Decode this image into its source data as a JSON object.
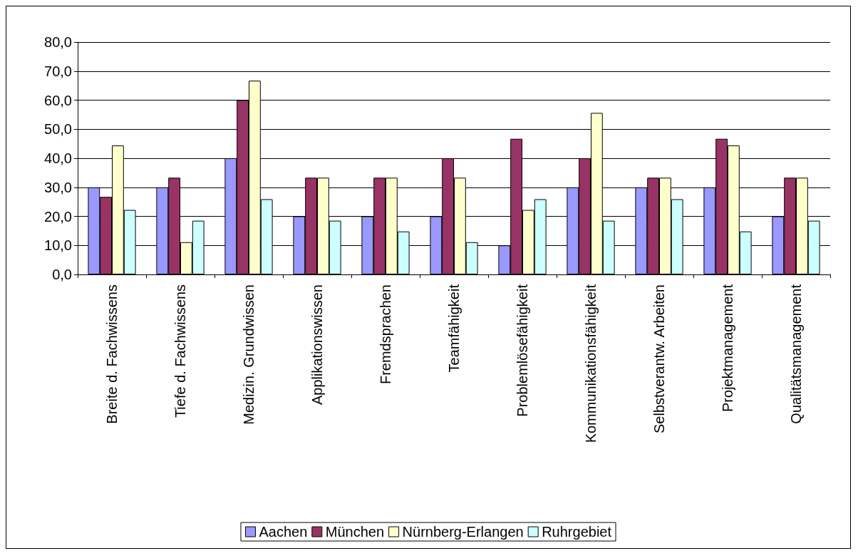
{
  "chart_data": {
    "type": "bar",
    "categories": [
      "Breite d. Fachwissens",
      "Tiefe d. Fachwissens",
      "Medizin. Grundwissen",
      "Applikationswissen",
      "Fremdsprachen",
      "Teamfähigkeit",
      "Problemlösefähigkeit",
      "Kommunikationsfähigkeit",
      "Selbstverantw. Arbeiten",
      "Projektmanagement",
      "Qualitätsmanagement"
    ],
    "series": [
      {
        "name": "Aachen",
        "color": "#9999ff",
        "values": [
          30,
          30,
          40,
          20,
          20,
          20,
          10,
          30,
          30,
          30,
          20
        ]
      },
      {
        "name": "München",
        "color": "#993366",
        "values": [
          26.7,
          33.3,
          60,
          33.3,
          33.3,
          40,
          46.7,
          40,
          33.3,
          46.7,
          33.3
        ]
      },
      {
        "name": "Nürnberg-Erlangen",
        "color": "#ffffcc",
        "values": [
          44.4,
          11.1,
          66.7,
          33.3,
          33.3,
          33.3,
          22.2,
          55.6,
          33.3,
          44.4,
          33.3
        ]
      },
      {
        "name": "Ruhrgebiet",
        "color": "#ccffff",
        "values": [
          22.2,
          18.5,
          25.9,
          18.5,
          14.8,
          11.1,
          25.9,
          18.5,
          25.9,
          14.8,
          18.5
        ]
      }
    ],
    "ylim": [
      0,
      80
    ],
    "yticks": [
      {
        "value": 0,
        "label": "0,0"
      },
      {
        "value": 10,
        "label": "10,0"
      },
      {
        "value": 20,
        "label": "20,0"
      },
      {
        "value": 30,
        "label": "30,0"
      },
      {
        "value": 40,
        "label": "40,0"
      },
      {
        "value": 50,
        "label": "50,0"
      },
      {
        "value": 60,
        "label": "60,0"
      },
      {
        "value": 70,
        "label": "70,0"
      },
      {
        "value": 80,
        "label": "80,0"
      }
    ],
    "grid": "y",
    "legend": "bottom"
  }
}
